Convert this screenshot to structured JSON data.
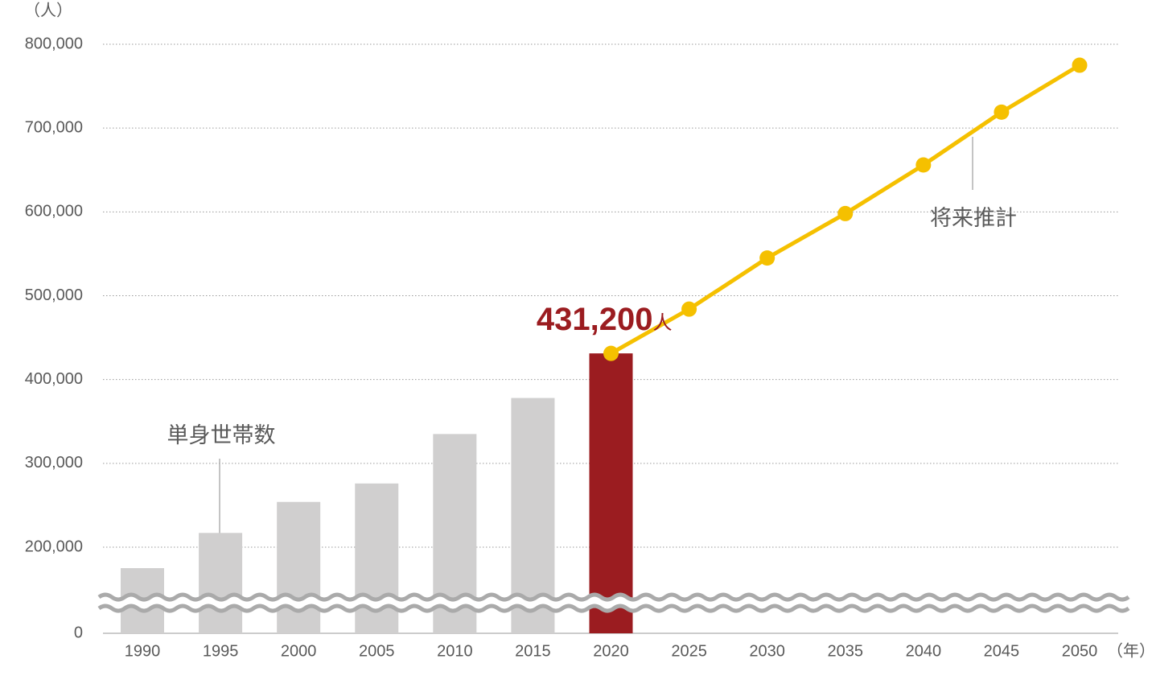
{
  "chart_data": {
    "type": "bar_line",
    "y_unit": "（人）",
    "x_unit": "（年）",
    "categories": [
      "1990",
      "1995",
      "2000",
      "2005",
      "2010",
      "2015",
      "2020",
      "2025",
      "2030",
      "2035",
      "2040",
      "2045",
      "2050"
    ],
    "series": [
      {
        "type": "bar",
        "colors": [
          "#d0cfcf",
          "#d0cfcf",
          "#d0cfcf",
          "#d0cfcf",
          "#d0cfcf",
          "#d0cfcf",
          "#9b1c20",
          null,
          null,
          null,
          null,
          null,
          null
        ],
        "values": [
          175000,
          217000,
          254000,
          276000,
          335000,
          378000,
          431200,
          null,
          null,
          null,
          null,
          null,
          null
        ],
        "value_labels": [
          null,
          null,
          null,
          null,
          null,
          null,
          "431,200",
          null,
          null,
          null,
          null,
          null,
          null
        ],
        "value_label_unit": "人",
        "value_label_color": "#9b1c20"
      },
      {
        "type": "line",
        "color": "#f5c000",
        "values": [
          null,
          null,
          null,
          null,
          null,
          null,
          431200,
          484000,
          545000,
          598000,
          656000,
          719000,
          775000
        ]
      }
    ],
    "annotations": [
      "単身世帯数",
      "将来推計"
    ],
    "ylim": [
      0,
      800000
    ],
    "yticks": [
      {
        "value": 0,
        "label": "0"
      },
      {
        "value": 200000,
        "label": "200,000"
      },
      {
        "value": 300000,
        "label": "300,000"
      },
      {
        "value": 400000,
        "label": "400,000"
      },
      {
        "value": 500000,
        "label": "500,000"
      },
      {
        "value": 600000,
        "label": "600,000"
      },
      {
        "value": 700000,
        "label": "700,000"
      },
      {
        "value": 800000,
        "label": "800,000"
      }
    ],
    "axis_break": true,
    "grid": true
  }
}
